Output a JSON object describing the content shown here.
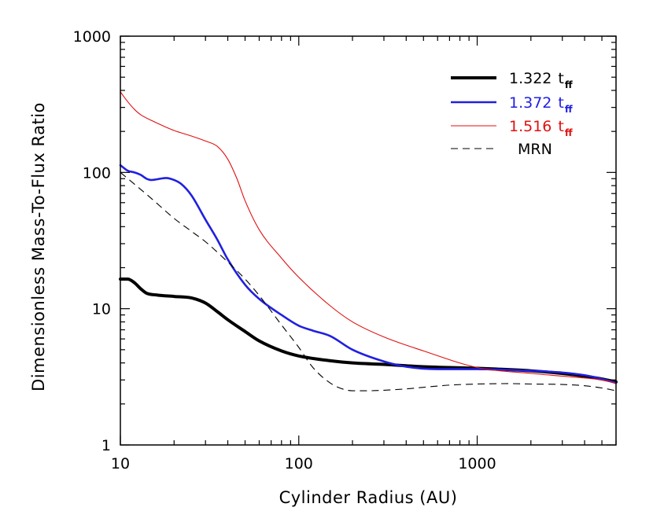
{
  "chart_data": {
    "type": "line",
    "title": "",
    "xlabel": "Cylinder Radius (AU)",
    "ylabel": "Dimensionless Mass-To-Flux Ratio",
    "xscale": "log",
    "yscale": "log",
    "xlim": [
      10,
      6000
    ],
    "ylim": [
      1,
      1000
    ],
    "xticks": [
      10,
      100,
      1000
    ],
    "xtick_labels": [
      "10",
      "100",
      "1000"
    ],
    "yticks": [
      1,
      10,
      100,
      1000
    ],
    "ytick_labels": [
      "1",
      "10",
      "100",
      "1000"
    ],
    "grid": false,
    "legend_position": "top-right",
    "series": [
      {
        "name": "1.322",
        "subscript": "ff",
        "name_prefix_italic": "t",
        "color": "#000000",
        "style": "solid",
        "weight": "thick",
        "x": [
          10,
          11,
          12,
          13,
          14,
          16,
          20,
          25,
          30,
          35,
          40,
          50,
          60,
          80,
          100,
          150,
          200,
          300,
          500,
          1000,
          2000,
          3000,
          4000,
          5000,
          6000
        ],
        "y": [
          16.5,
          16.5,
          15.5,
          14.0,
          13.0,
          12.6,
          12.3,
          12.0,
          11.0,
          9.5,
          8.3,
          6.8,
          5.8,
          4.9,
          4.5,
          4.15,
          4.0,
          3.9,
          3.75,
          3.65,
          3.5,
          3.35,
          3.2,
          3.05,
          2.9
        ]
      },
      {
        "name": "1.372",
        "subscript": "ff",
        "name_prefix_italic": "t",
        "color": "#2020e0",
        "style": "solid",
        "weight": "medium",
        "x": [
          10,
          11,
          12,
          13,
          14,
          15,
          16,
          18,
          20,
          22,
          25,
          30,
          35,
          40,
          50,
          60,
          80,
          100,
          120,
          150,
          200,
          300,
          400,
          600,
          1000,
          2000,
          3000,
          4000,
          5000,
          6000
        ],
        "y": [
          113,
          103,
          100,
          96,
          90,
          88,
          89,
          91,
          88,
          82,
          68,
          45,
          32,
          23,
          15,
          11.8,
          9.0,
          7.5,
          6.9,
          6.3,
          5.0,
          4.1,
          3.75,
          3.6,
          3.6,
          3.5,
          3.4,
          3.25,
          3.05,
          2.85
        ]
      },
      {
        "name": "1.516",
        "subscript": "ff",
        "name_prefix_italic": "t",
        "color": "#e01010",
        "style": "solid",
        "weight": "thin",
        "x": [
          10,
          11,
          12,
          13,
          15,
          18,
          20,
          25,
          30,
          35,
          40,
          45,
          50,
          60,
          80,
          100,
          150,
          200,
          300,
          500,
          1000,
          2000,
          3000,
          4000,
          5000,
          6000
        ],
        "y": [
          390,
          330,
          290,
          265,
          240,
          215,
          203,
          185,
          170,
          155,
          125,
          90,
          62,
          38,
          23.5,
          17,
          10.5,
          8.0,
          6.2,
          4.9,
          3.7,
          3.35,
          3.2,
          3.1,
          3.0,
          2.85
        ]
      },
      {
        "name": "MRN",
        "color": "#000000",
        "style": "dashed",
        "weight": "thin",
        "x": [
          10,
          12,
          15,
          20,
          25,
          30,
          40,
          50,
          60,
          80,
          100,
          120,
          150,
          180,
          200,
          250,
          300,
          400,
          500,
          700,
          1000,
          1500,
          2000,
          3000,
          4000,
          5000,
          6000
        ],
        "y": [
          100,
          82,
          64,
          46,
          37,
          31,
          22,
          16.5,
          12.5,
          7.6,
          5.2,
          3.7,
          2.85,
          2.55,
          2.5,
          2.5,
          2.52,
          2.58,
          2.65,
          2.75,
          2.8,
          2.82,
          2.8,
          2.78,
          2.72,
          2.62,
          2.5
        ]
      }
    ]
  }
}
